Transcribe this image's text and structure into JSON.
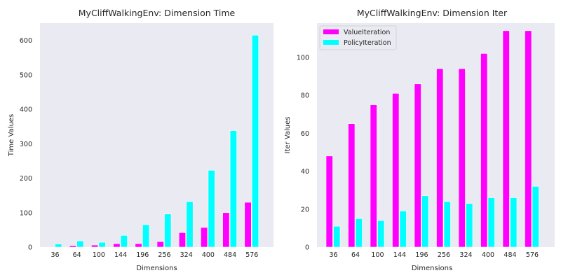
{
  "chart_data": [
    {
      "type": "bar",
      "title": "MyCliffWalkingEnv: Dimension Time",
      "xlabel": "Dimensions",
      "ylabel": "Time Values",
      "categories": [
        "36",
        "64",
        "100",
        "144",
        "196",
        "256",
        "324",
        "400",
        "484",
        "576"
      ],
      "ylim": [
        0,
        650
      ],
      "yticks": [
        0,
        100,
        200,
        300,
        400,
        500,
        600
      ],
      "grid": false,
      "series": [
        {
          "values": [
            1.5,
            4.5,
            6,
            10,
            10,
            16,
            42,
            57,
            100,
            130
          ],
          "color": "#ff00ff"
        },
        {
          "values": [
            9,
            18,
            14,
            34,
            65,
            96,
            132,
            223,
            338,
            615
          ],
          "color": "#00ffff"
        }
      ]
    },
    {
      "type": "bar",
      "title": "MyCliffWalkingEnv: Dimension Iter",
      "xlabel": "Dimensions",
      "ylabel": "Iter Values",
      "categories": [
        "36",
        "64",
        "100",
        "144",
        "196",
        "256",
        "324",
        "400",
        "484",
        "576"
      ],
      "ylim": [
        0,
        118
      ],
      "yticks": [
        0,
        20,
        40,
        60,
        80,
        100
      ],
      "grid": false,
      "legend": "top-left",
      "series": [
        {
          "name": "ValueIteration",
          "values": [
            48,
            65,
            75,
            81,
            86,
            94,
            94,
            102,
            114,
            114
          ],
          "color": "#ff00ff"
        },
        {
          "name": "PolicyIteration",
          "values": [
            11,
            15,
            14,
            19,
            27,
            24,
            23,
            26,
            26,
            32
          ],
          "color": "#00ffff"
        }
      ]
    }
  ]
}
